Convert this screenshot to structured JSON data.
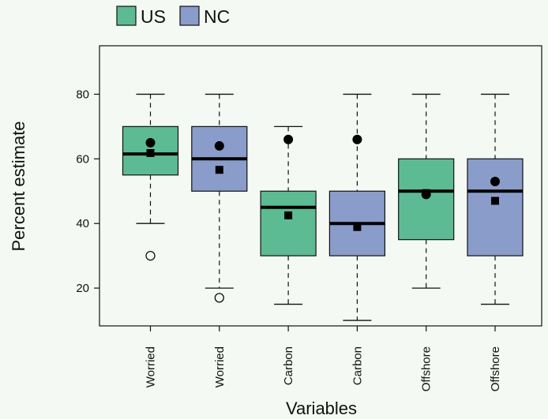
{
  "chart_data": {
    "type": "box",
    "xlabel": "Variables",
    "ylabel": "Percent estimate",
    "ylim": [
      8.3,
      95
    ],
    "yticks": [
      20,
      40,
      60,
      80
    ],
    "grid": false,
    "legend": {
      "placement": "top-left",
      "entries": [
        {
          "label": "US",
          "color": "#5dbb93"
        },
        {
          "label": "NC",
          "color": "#8a9cca"
        }
      ]
    },
    "categories": [
      "Worried",
      "Worried",
      "Carbon",
      "Carbon",
      "Offshore",
      "Offshore"
    ],
    "boxes": [
      {
        "category": "Worried",
        "group": "US",
        "whisker_low": 40,
        "q1": 55,
        "median": 61.5,
        "q3": 70,
        "whisker_high": 80,
        "outliers": [
          30
        ],
        "mean": 61.8,
        "dot": 65
      },
      {
        "category": "Worried",
        "group": "NC",
        "whisker_low": 20,
        "q1": 50,
        "median": 60,
        "q3": 70,
        "whisker_high": 80,
        "outliers": [
          17
        ],
        "mean": 56.6,
        "dot": 64
      },
      {
        "category": "Carbon",
        "group": "US",
        "whisker_low": 15,
        "q1": 30,
        "median": 45,
        "q3": 50,
        "whisker_high": 70,
        "outliers": [],
        "mean": 42.5,
        "dot": 66
      },
      {
        "category": "Carbon",
        "group": "NC",
        "whisker_low": 10,
        "q1": 30,
        "median": 40,
        "q3": 50,
        "whisker_high": 80,
        "outliers": [],
        "mean": 38.9,
        "dot": 66
      },
      {
        "category": "Offshore",
        "group": "US",
        "whisker_low": 20,
        "q1": 35,
        "median": 50,
        "q3": 60,
        "whisker_high": 80,
        "outliers": [],
        "mean": 49.4,
        "dot": 49
      },
      {
        "category": "Offshore",
        "group": "NC",
        "whisker_low": 15,
        "q1": 30,
        "median": 50,
        "q3": 60,
        "whisker_high": 80,
        "outliers": [],
        "mean": 47,
        "dot": 53
      }
    ]
  }
}
